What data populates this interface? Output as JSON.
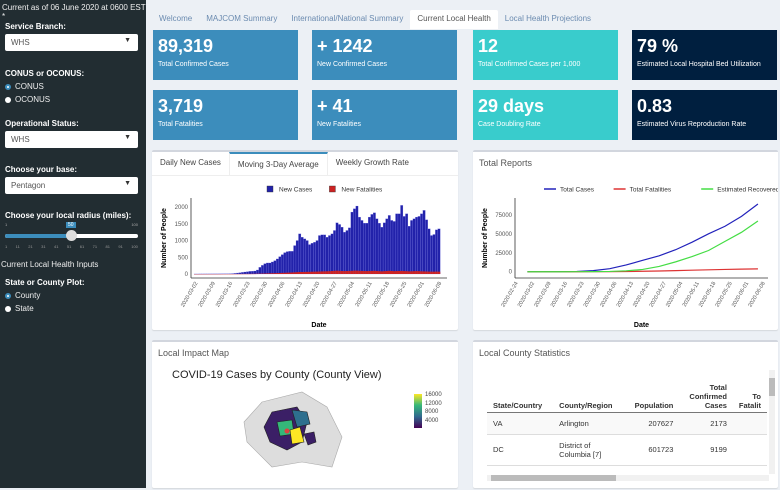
{
  "sidebar": {
    "note": "Current as of 06 June 2020 at 0600 EST *",
    "branch_label": "Service Branch:",
    "branch_value": "WHS",
    "conus_label": "CONUS or OCONUS:",
    "conus_options": [
      "CONUS",
      "OCONUS"
    ],
    "status_label": "Operational Status:",
    "status_value": "WHS",
    "base_label": "Choose your base:",
    "base_value": "Pentagon",
    "radius_label": "Choose your local radius (miles):",
    "radius_min": "1",
    "radius_max": "100",
    "radius_value": "50",
    "radius_ticks": [
      "1",
      "11",
      "21",
      "31",
      "41",
      "51",
      "61",
      "71",
      "81",
      "91",
      "100"
    ],
    "inputs_heading": "Current Local Health Inputs",
    "plot_label": "State or County Plot:",
    "plot_options": [
      "County",
      "State"
    ]
  },
  "tabs": [
    "Welcome",
    "MAJCOM Summary",
    "International/National Summary",
    "Current Local Health",
    "Local Health Projections"
  ],
  "boxes": [
    {
      "value": "89,319",
      "label": "Total Confirmed Cases"
    },
    {
      "value": "+ 1242",
      "label": "New Confirmed Cases"
    },
    {
      "value": "12",
      "label": "Total Confirmed Cases per 1,000"
    },
    {
      "value": "79 %",
      "label": "Estimated Local Hospital Bed Utilization"
    },
    {
      "value": "3,719",
      "label": "Total Fatalities"
    },
    {
      "value": "+ 41",
      "label": "New Fatalities"
    },
    {
      "value": "29 days",
      "label": "Case Doubling Rate"
    },
    {
      "value": "0.83",
      "label": "Estimated Virus Reproduction Rate"
    }
  ],
  "colors": {
    "blue": "#3c8dbc",
    "teal": "#39cccc",
    "navy": "#001f3f"
  },
  "chart_tabs": [
    "Daily New Cases",
    "Moving 3-Day Average",
    "Weekly Growth Rate"
  ],
  "total_reports_title": "Total Reports",
  "map_title": "Local Impact Map",
  "map": {
    "title": "COVID-19 Cases by County (County View)",
    "scale": [
      "16000",
      "12000",
      "8000",
      "4000"
    ]
  },
  "stats_title": "Local County Statistics",
  "stats": {
    "headers": [
      "State/Country",
      "County/Region",
      "Population",
      "Total Confirmed Cases",
      "To Fatalit"
    ],
    "rows": [
      [
        "VA",
        "Arlington",
        "207627",
        "2173",
        ""
      ],
      [
        "DC",
        "District of Columbia [7]",
        "601723",
        "9199",
        ""
      ]
    ]
  },
  "chart_data": [
    {
      "type": "bar",
      "title": "",
      "xlabel": "Date",
      "ylabel": "Number of People",
      "ylim": [
        0,
        2150
      ],
      "start_date": "2020-03-01",
      "xticks": [
        "2020-03-02",
        "2020-03-09",
        "2020-03-16",
        "2020-03-23",
        "2020-03-30",
        "2020-04-06",
        "2020-04-13",
        "2020-04-20",
        "2020-04-27",
        "2020-05-04",
        "2020-05-11",
        "2020-05-18",
        "2020-05-25",
        "2020-06-01",
        "2020-06-08"
      ],
      "yticks": [
        0,
        500,
        1000,
        1500,
        2000
      ],
      "series": [
        {
          "name": "New Cases",
          "color": "#2222aa",
          "values": [
            2,
            2,
            3,
            3,
            4,
            4,
            5,
            5,
            6,
            6,
            7,
            8,
            9,
            10,
            12,
            14,
            20,
            30,
            40,
            50,
            60,
            70,
            80,
            85,
            90,
            120,
            200,
            260,
            310,
            330,
            330,
            360,
            400,
            450,
            520,
            580,
            640,
            670,
            680,
            680,
            850,
            1000,
            1200,
            1100,
            1050,
            1000,
            880,
            920,
            950,
            1000,
            1150,
            1170,
            1170,
            1100,
            1150,
            1200,
            1300,
            1530,
            1480,
            1400,
            1250,
            1300,
            1380,
            1850,
            1950,
            2030,
            1700,
            1600,
            1520,
            1520,
            1700,
            1780,
            1830,
            1650,
            1520,
            1400,
            1530,
            1650,
            1750,
            1600,
            1570,
            1800,
            1800,
            2050,
            1720,
            1800,
            1430,
            1600,
            1650,
            1700,
            1720,
            1800,
            1900,
            1620,
            1350,
            1150,
            1180,
            1320,
            1350
          ]
        },
        {
          "name": "New Fatalities",
          "color": "#cc2222",
          "values": [
            0,
            0,
            0,
            0,
            0,
            0,
            0,
            0,
            0,
            0,
            0,
            0,
            0,
            0,
            0,
            0,
            1,
            1,
            2,
            2,
            3,
            3,
            4,
            5,
            6,
            8,
            10,
            12,
            15,
            18,
            20,
            22,
            25,
            28,
            30,
            33,
            36,
            40,
            42,
            45,
            50,
            55,
            60,
            60,
            62,
            65,
            65,
            68,
            70,
            72,
            75,
            78,
            80,
            82,
            85,
            90,
            95,
            100,
            95,
            90,
            88,
            90,
            92,
            95,
            100,
            100,
            95,
            92,
            90,
            88,
            90,
            92,
            95,
            90,
            85,
            80,
            85,
            90,
            95,
            90,
            85,
            88,
            90,
            92,
            88,
            85,
            80,
            82,
            85,
            88,
            85,
            80,
            78,
            75,
            72,
            70,
            70,
            72,
            70
          ]
        }
      ]
    },
    {
      "type": "line",
      "title": "",
      "xlabel": "Date",
      "ylabel": "Number of People",
      "ylim": [
        -3000,
        92000
      ],
      "x": [
        "2020-02-28",
        "2020-03-06",
        "2020-03-13",
        "2020-03-20",
        "2020-03-27",
        "2020-04-03",
        "2020-04-10",
        "2020-04-17",
        "2020-04-24",
        "2020-05-01",
        "2020-05-08",
        "2020-05-15",
        "2020-05-22",
        "2020-05-29",
        "2020-06-05"
      ],
      "xticks": [
        "2020-02-24",
        "2020-03-02",
        "2020-03-09",
        "2020-03-16",
        "2020-03-23",
        "2020-03-30",
        "2020-04-06",
        "2020-04-13",
        "2020-04-20",
        "2020-04-27",
        "2020-05-04",
        "2020-05-11",
        "2020-05-18",
        "2020-05-25",
        "2020-06-01",
        "2020-06-08"
      ],
      "yticks": [
        0,
        25000,
        50000,
        75000
      ],
      "series": [
        {
          "name": "Total Cases",
          "color": "#2222bb",
          "values": [
            0,
            20,
            100,
            400,
            1500,
            4000,
            9000,
            15000,
            21000,
            29000,
            39000,
            50000,
            60000,
            73000,
            89319
          ]
        },
        {
          "name": "Total Fatalities",
          "color": "#dd3333",
          "values": [
            0,
            0,
            2,
            10,
            40,
            120,
            300,
            600,
            1000,
            1500,
            2000,
            2500,
            3000,
            3400,
            3719
          ]
        },
        {
          "name": "Estimated Recovered",
          "color": "#44dd44",
          "values": [
            0,
            0,
            10,
            50,
            150,
            400,
            1200,
            3000,
            7000,
            13000,
            20000,
            28000,
            40000,
            52000,
            67000
          ]
        }
      ]
    }
  ]
}
